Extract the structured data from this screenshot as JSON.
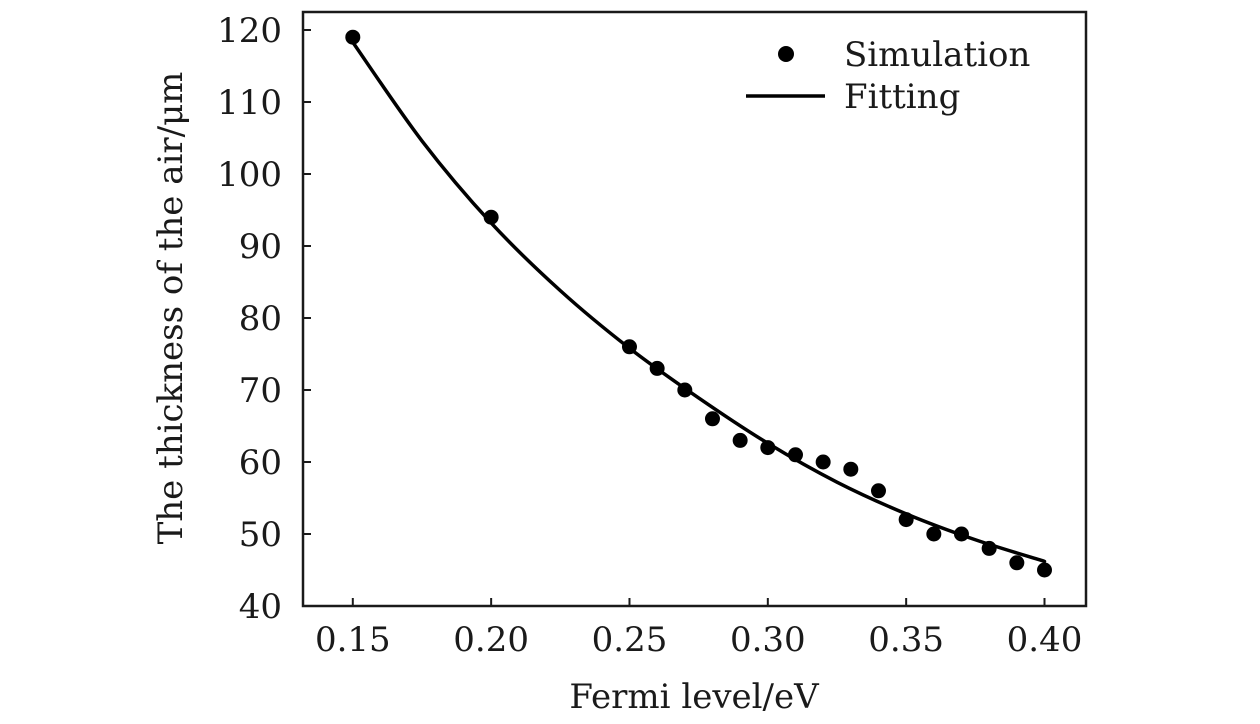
{
  "chart_data": {
    "type": "scatter",
    "title": "",
    "xlabel": "Fermi level/eV",
    "ylabel": "The thickness of the air/μm",
    "xlim": [
      0.132,
      0.415
    ],
    "ylim": [
      40,
      122.5
    ],
    "xticks": [
      0.15,
      0.2,
      0.25,
      0.3,
      0.35,
      0.4
    ],
    "xtick_labels": [
      "0.15",
      "0.20",
      "0.25",
      "0.30",
      "0.35",
      "0.40"
    ],
    "yticks": [
      40,
      50,
      60,
      70,
      80,
      90,
      100,
      110,
      120
    ],
    "ytick_labels": [
      "40",
      "50",
      "60",
      "70",
      "80",
      "90",
      "100",
      "110",
      "120"
    ],
    "grid": false,
    "legend_position": "top-right",
    "series": [
      {
        "name": "Simulation",
        "kind": "scatter",
        "color": "#000000",
        "x": [
          0.15,
          0.2,
          0.25,
          0.26,
          0.27,
          0.28,
          0.29,
          0.3,
          0.31,
          0.32,
          0.33,
          0.34,
          0.35,
          0.36,
          0.37,
          0.38,
          0.39,
          0.4
        ],
        "y": [
          119,
          94,
          76,
          73,
          70,
          66,
          63,
          62,
          61,
          60,
          59,
          56,
          52,
          50,
          50,
          48,
          46,
          45
        ]
      },
      {
        "name": "Fitting",
        "kind": "line",
        "color": "#000000",
        "x": [
          0.15,
          0.175,
          0.2,
          0.225,
          0.25,
          0.275,
          0.3,
          0.325,
          0.35,
          0.375,
          0.4
        ],
        "y": [
          118.3,
          104.6,
          93.2,
          83.8,
          75.8,
          68.9,
          62.6,
          57.2,
          52.8,
          49.2,
          46.2
        ]
      }
    ]
  }
}
